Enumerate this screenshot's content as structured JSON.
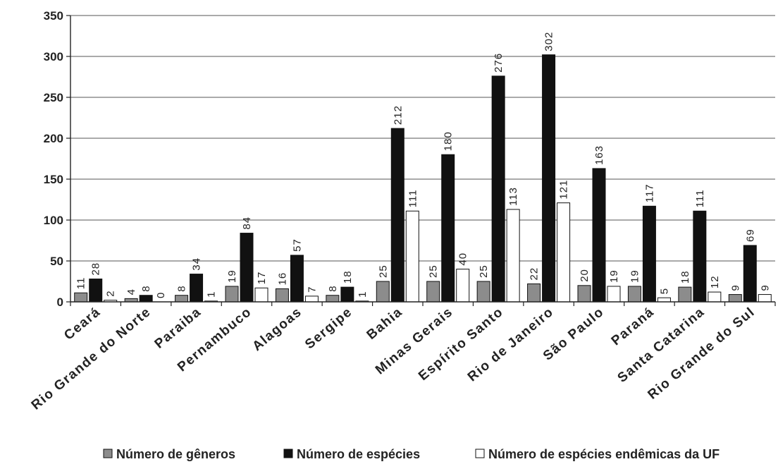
{
  "chart_data": {
    "type": "bar",
    "categories": [
      "Ceará",
      "Rio Grande do Norte",
      "Paraiba",
      "Pernambuco",
      "Alagoas",
      "Sergipe",
      "Bahia",
      "Minas Gerais",
      "Espírito Santo",
      "Rio de Janeiro",
      "São Paulo",
      "Paraná",
      "Santa Catarina",
      "Rio Grande do Sul"
    ],
    "series": [
      {
        "name": "Número de gêneros",
        "color": "#8c8c8c",
        "values": [
          11,
          4,
          8,
          19,
          16,
          8,
          25,
          25,
          25,
          22,
          20,
          19,
          18,
          9
        ]
      },
      {
        "name": "Número de espécies",
        "color": "#111111",
        "values": [
          28,
          8,
          34,
          84,
          57,
          18,
          212,
          180,
          276,
          302,
          163,
          117,
          111,
          69
        ]
      },
      {
        "name": "Número de espécies endêmicas da UF",
        "color": "#ffffff",
        "values": [
          2,
          0,
          1,
          17,
          7,
          1,
          111,
          40,
          113,
          121,
          19,
          5,
          12,
          9
        ]
      }
    ],
    "yticks": [
      "0",
      "50",
      "100",
      "150",
      "200",
      "250",
      "300",
      "350"
    ],
    "ylim": [
      0,
      350
    ],
    "grid": true,
    "legend_position": "bottom",
    "title": "",
    "xlabel": "",
    "ylabel": ""
  }
}
